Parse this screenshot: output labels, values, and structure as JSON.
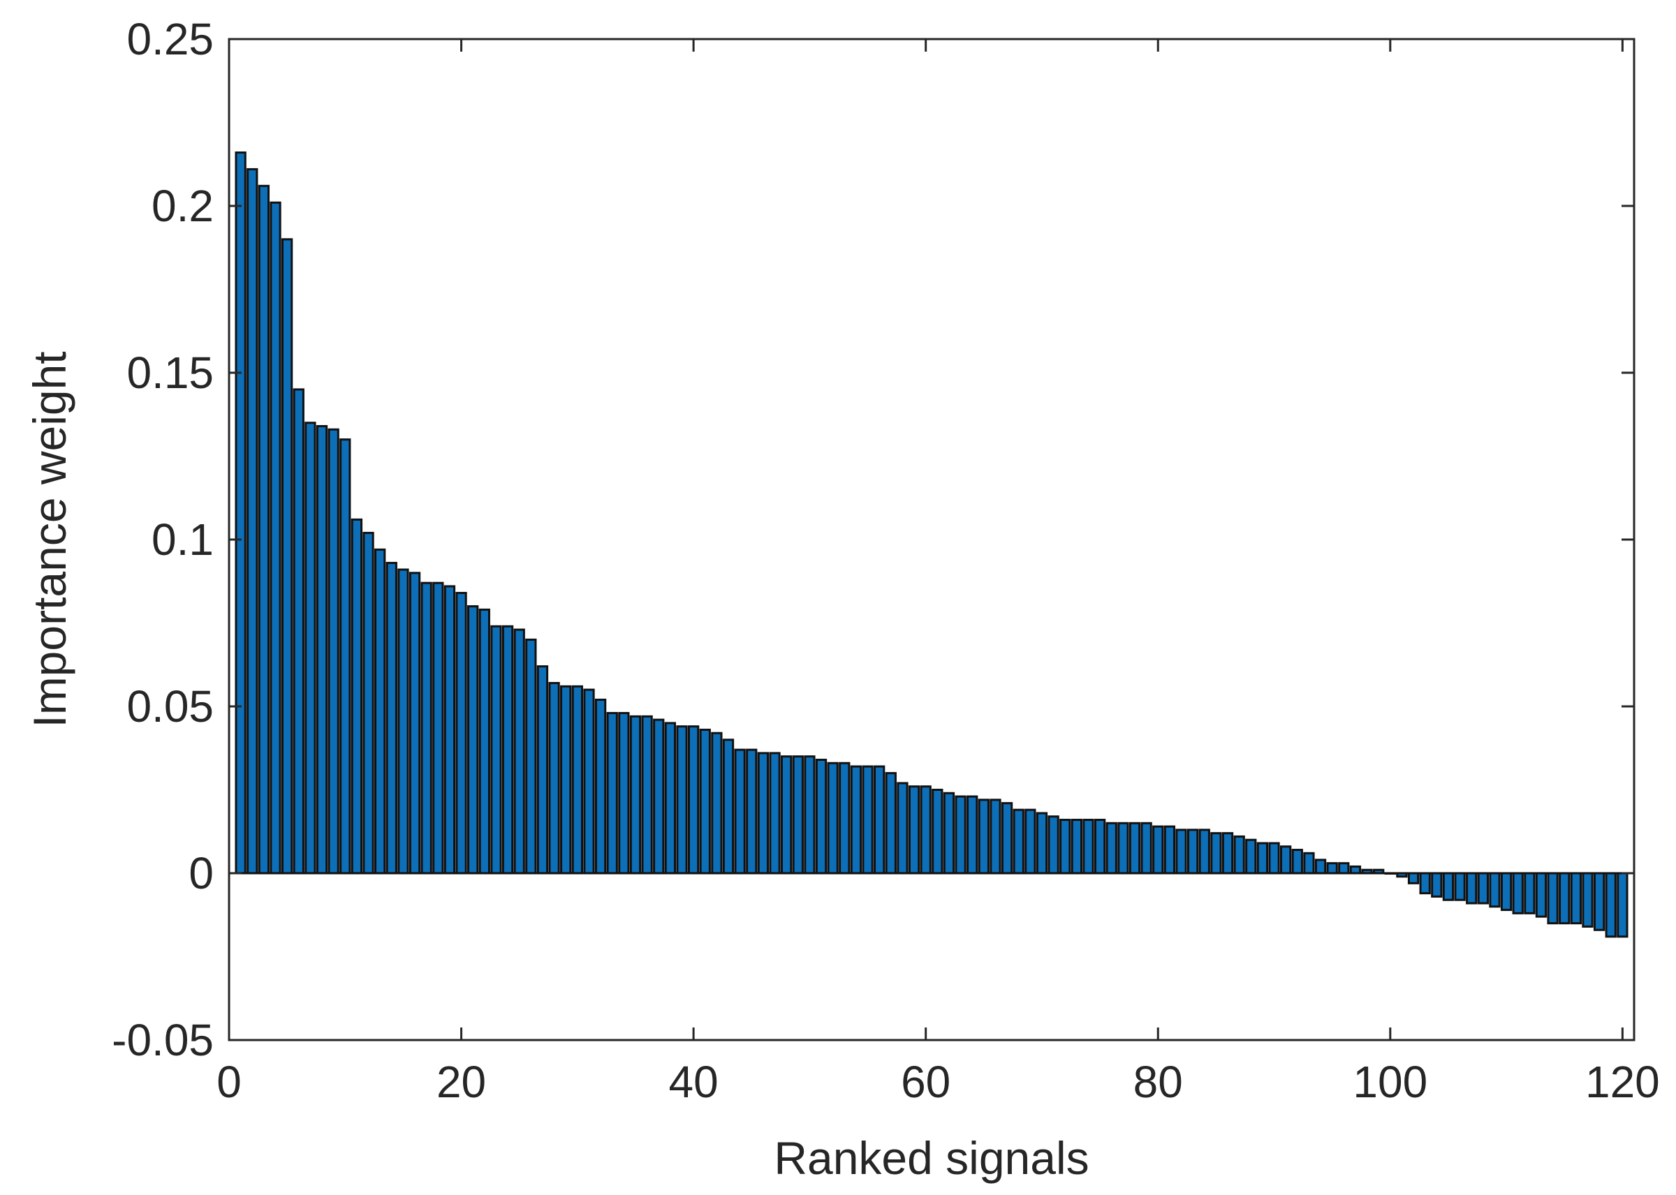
{
  "chart_data": {
    "type": "bar",
    "title": "",
    "xlabel": "Ranked signals",
    "ylabel": "Importance weight",
    "xlim": [
      0,
      121
    ],
    "ylim": [
      -0.05,
      0.25
    ],
    "xticks": [
      "0",
      "20",
      "40",
      "60",
      "80",
      "100",
      "120"
    ],
    "yticks": [
      "-0.05",
      "0",
      "0.05",
      "0.1",
      "0.15",
      "0.2",
      "0.25"
    ],
    "grid": false,
    "legend": false,
    "bar_color": "#0c6fb8",
    "edge_color": "#111111",
    "x": [
      1,
      2,
      3,
      4,
      5,
      6,
      7,
      8,
      9,
      10,
      11,
      12,
      13,
      14,
      15,
      16,
      17,
      18,
      19,
      20,
      21,
      22,
      23,
      24,
      25,
      26,
      27,
      28,
      29,
      30,
      31,
      32,
      33,
      34,
      35,
      36,
      37,
      38,
      39,
      40,
      41,
      42,
      43,
      44,
      45,
      46,
      47,
      48,
      49,
      50,
      51,
      52,
      53,
      54,
      55,
      56,
      57,
      58,
      59,
      60,
      61,
      62,
      63,
      64,
      65,
      66,
      67,
      68,
      69,
      70,
      71,
      72,
      73,
      74,
      75,
      76,
      77,
      78,
      79,
      80,
      81,
      82,
      83,
      84,
      85,
      86,
      87,
      88,
      89,
      90,
      91,
      92,
      93,
      94,
      95,
      96,
      97,
      98,
      99,
      100,
      101,
      102,
      103,
      104,
      105,
      106,
      107,
      108,
      109,
      110,
      111,
      112,
      113,
      114,
      115,
      116,
      117,
      118,
      119,
      120
    ],
    "values": [
      0.216,
      0.211,
      0.206,
      0.201,
      0.19,
      0.145,
      0.135,
      0.134,
      0.133,
      0.13,
      0.106,
      0.102,
      0.097,
      0.093,
      0.091,
      0.09,
      0.087,
      0.087,
      0.086,
      0.084,
      0.08,
      0.079,
      0.074,
      0.074,
      0.073,
      0.07,
      0.062,
      0.057,
      0.056,
      0.056,
      0.055,
      0.052,
      0.048,
      0.048,
      0.047,
      0.047,
      0.046,
      0.045,
      0.044,
      0.044,
      0.043,
      0.042,
      0.04,
      0.037,
      0.037,
      0.036,
      0.036,
      0.035,
      0.035,
      0.035,
      0.034,
      0.033,
      0.033,
      0.032,
      0.032,
      0.032,
      0.03,
      0.027,
      0.026,
      0.026,
      0.025,
      0.024,
      0.023,
      0.023,
      0.022,
      0.022,
      0.021,
      0.019,
      0.019,
      0.018,
      0.017,
      0.016,
      0.016,
      0.016,
      0.016,
      0.015,
      0.015,
      0.015,
      0.015,
      0.014,
      0.014,
      0.013,
      0.013,
      0.013,
      0.012,
      0.012,
      0.011,
      0.01,
      0.009,
      0.009,
      0.008,
      0.007,
      0.006,
      0.004,
      0.003,
      0.003,
      0.002,
      0.001,
      0.001,
      0.0,
      -0.001,
      -0.003,
      -0.006,
      -0.007,
      -0.008,
      -0.008,
      -0.009,
      -0.009,
      -0.01,
      -0.011,
      -0.012,
      -0.012,
      -0.013,
      -0.015,
      -0.015,
      -0.015,
      -0.016,
      -0.017,
      -0.019,
      -0.019
    ]
  }
}
